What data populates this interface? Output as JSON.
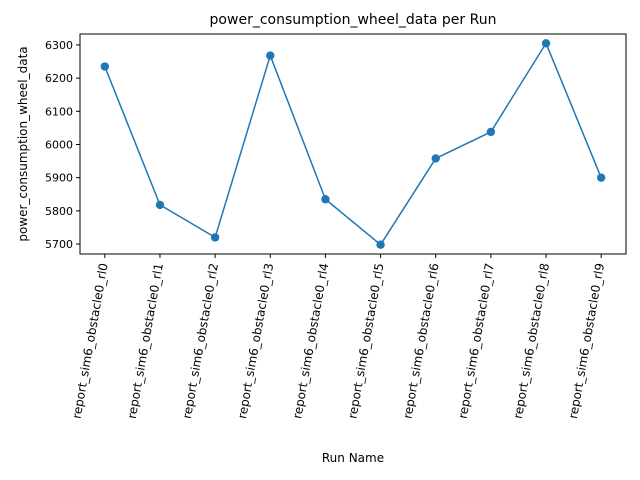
{
  "chart_data": {
    "type": "line",
    "title": "power_consumption_wheel_data per Run",
    "xlabel": "Run Name",
    "ylabel": "power_consumption_wheel_data",
    "categories": [
      "report_sim6_obstacle0_rl0",
      "report_sim6_obstacle0_rl1",
      "report_sim6_obstacle0_rl2",
      "report_sim6_obstacle0_rl3",
      "report_sim6_obstacle0_rl4",
      "report_sim6_obstacle0_rl5",
      "report_sim6_obstacle0_rl6",
      "report_sim6_obstacle0_rl7",
      "report_sim6_obstacle0_rl8",
      "report_sim6_obstacle0_rl9"
    ],
    "values": [
      6235,
      5818,
      5720,
      6268,
      5835,
      5698,
      5958,
      6038,
      6305,
      5900
    ],
    "ylim": [
      5670,
      6333
    ],
    "yticks": [
      5700,
      5800,
      5900,
      6000,
      6100,
      6200,
      6300
    ],
    "x_tick_rotation_deg": 80,
    "grid": false,
    "marker": "circle",
    "line_color": "#1f77b4"
  }
}
